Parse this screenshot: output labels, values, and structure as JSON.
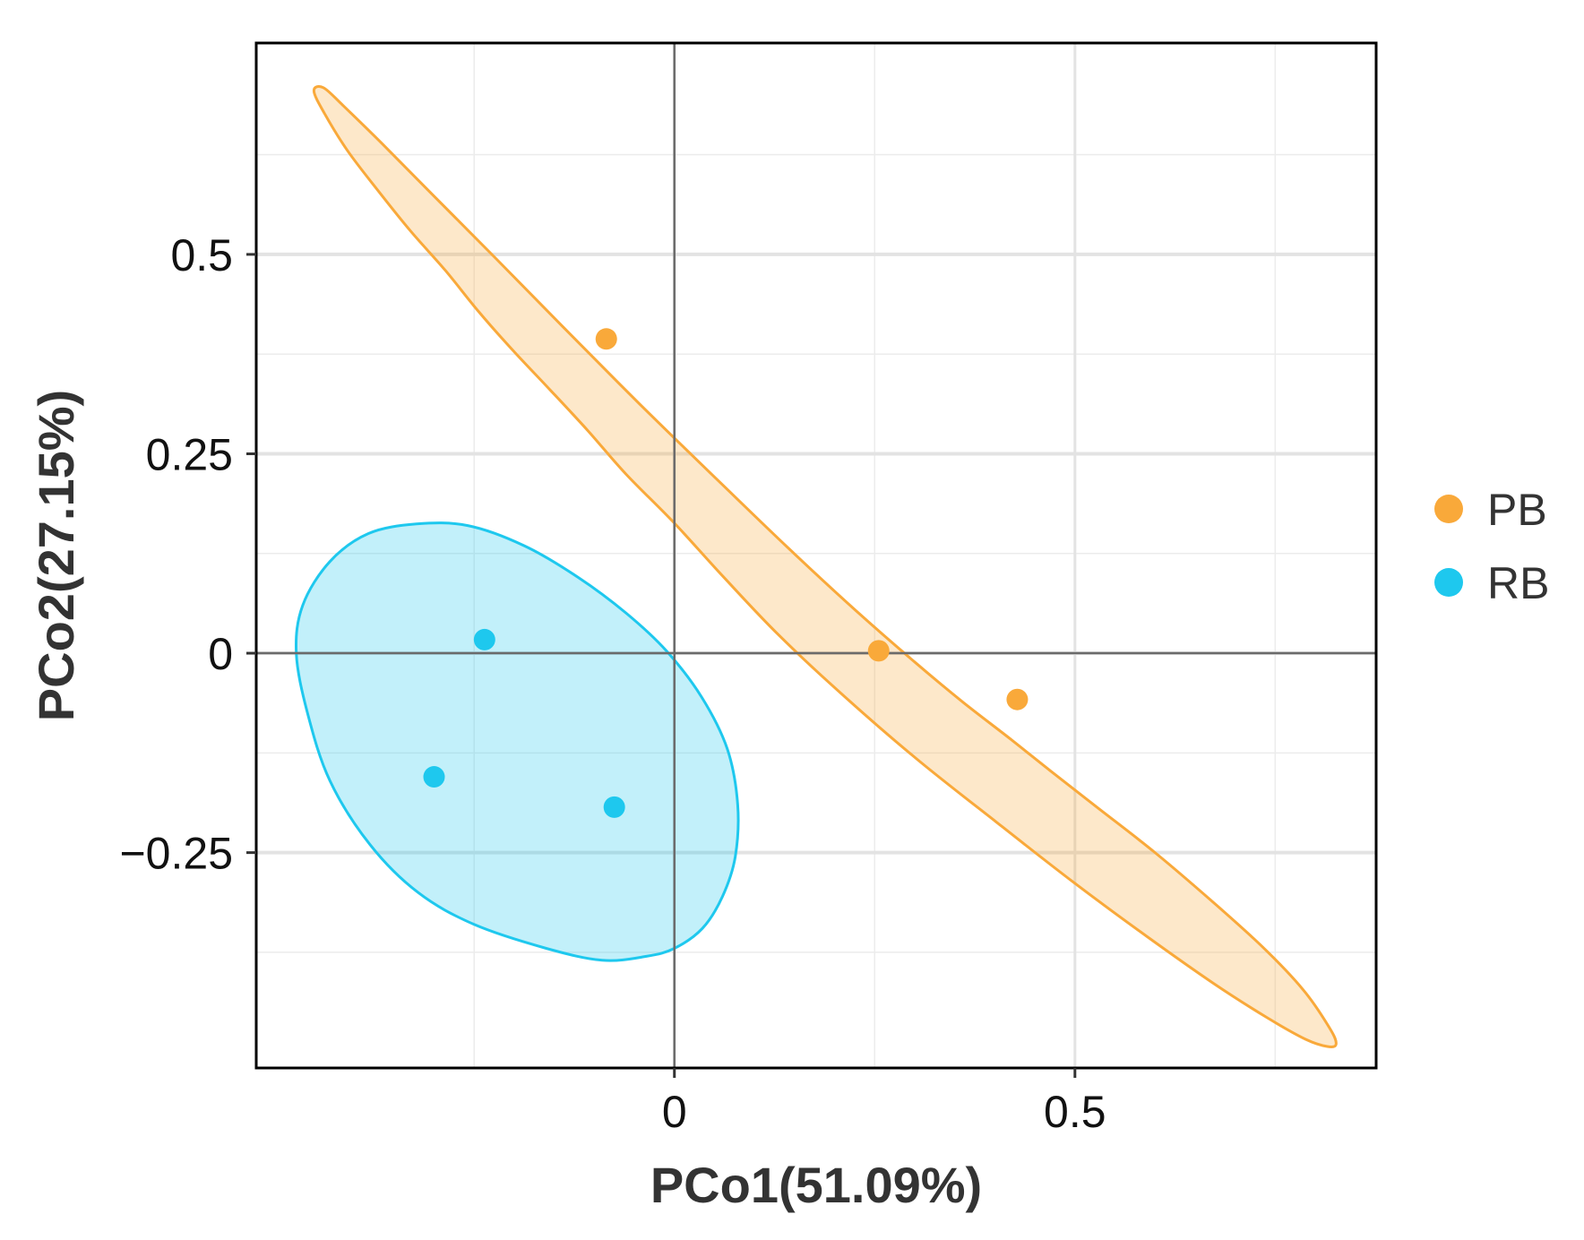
{
  "chart_data": {
    "type": "scatter",
    "title": "",
    "xlabel": "PCo1(51.09%)",
    "ylabel": "PCo2(27.15%)",
    "xlim": [
      -0.522,
      0.876
    ],
    "ylim": [
      -0.52,
      0.765
    ],
    "x_ticks": [
      {
        "value": 0,
        "label": "0"
      },
      {
        "value": 0.5,
        "label": "0.5"
      }
    ],
    "y_ticks": [
      {
        "value": 0.5,
        "label": "0.5"
      },
      {
        "value": 0.25,
        "label": "0.25"
      },
      {
        "value": 0,
        "label": "0"
      },
      {
        "value": -0.25,
        "label": "−0.25"
      }
    ],
    "x_minor_grid": [
      -0.25,
      0.25,
      0.75
    ],
    "y_minor_grid": [
      0.625,
      0.375,
      0.125,
      -0.125,
      -0.375
    ],
    "reference_lines": {
      "x": 0,
      "y": 0
    },
    "grid": true,
    "legend_position": "right",
    "series": [
      {
        "name": "PB",
        "color": "#F9A93A",
        "points": [
          [
            -0.085,
            0.394
          ],
          [
            0.255,
            0.003
          ],
          [
            0.428,
            -0.058
          ]
        ],
        "ellipse_outline": [
          [
            -0.438,
            0.709
          ],
          [
            -0.413,
            0.686
          ],
          [
            -0.366,
            0.64
          ],
          [
            -0.302,
            0.575
          ],
          [
            -0.224,
            0.496
          ],
          [
            -0.136,
            0.406
          ],
          [
            -0.043,
            0.312
          ],
          [
            0.052,
            0.219
          ],
          [
            0.143,
            0.131
          ],
          [
            0.227,
            0.053
          ],
          [
            0.301,
            -0.012
          ],
          [
            0.361,
            -0.062
          ],
          [
            0.42,
            -0.108
          ],
          [
            0.47,
            -0.148
          ],
          [
            0.53,
            -0.195
          ],
          [
            0.6,
            -0.25
          ],
          [
            0.67,
            -0.31
          ],
          [
            0.734,
            -0.368
          ],
          [
            0.785,
            -0.422
          ],
          [
            0.818,
            -0.47
          ],
          [
            0.826,
            -0.49
          ],
          [
            0.815,
            -0.493
          ],
          [
            0.788,
            -0.484
          ],
          [
            0.74,
            -0.457
          ],
          [
            0.673,
            -0.414
          ],
          [
            0.591,
            -0.356
          ],
          [
            0.498,
            -0.287
          ],
          [
            0.401,
            -0.211
          ],
          [
            0.303,
            -0.133
          ],
          [
            0.212,
            -0.054
          ],
          [
            0.13,
            0.023
          ],
          [
            0.06,
            0.097
          ],
          [
            0.0,
            0.163
          ],
          [
            -0.06,
            0.224
          ],
          [
            -0.108,
            0.279
          ],
          [
            -0.155,
            0.33
          ],
          [
            -0.201,
            0.379
          ],
          [
            -0.245,
            0.429
          ],
          [
            -0.286,
            0.48
          ],
          [
            -0.33,
            0.53
          ],
          [
            -0.37,
            0.58
          ],
          [
            -0.408,
            0.63
          ],
          [
            -0.437,
            0.677
          ],
          [
            -0.45,
            0.705
          ]
        ]
      },
      {
        "name": "RB",
        "color": "#1EC8EE",
        "points": [
          [
            -0.237,
            0.017
          ],
          [
            -0.3,
            -0.155
          ],
          [
            -0.075,
            -0.193
          ]
        ],
        "ellipse_outline": [
          [
            -0.322,
            0.162
          ],
          [
            -0.258,
            0.16
          ],
          [
            -0.188,
            0.135
          ],
          [
            -0.12,
            0.095
          ],
          [
            -0.06,
            0.05
          ],
          [
            -0.01,
            0.003
          ],
          [
            0.034,
            -0.055
          ],
          [
            0.066,
            -0.12
          ],
          [
            0.079,
            -0.19
          ],
          [
            0.076,
            -0.255
          ],
          [
            0.06,
            -0.305
          ],
          [
            0.035,
            -0.345
          ],
          [
            0.0,
            -0.37
          ],
          [
            -0.035,
            -0.38
          ],
          [
            -0.09,
            -0.385
          ],
          [
            -0.16,
            -0.37
          ],
          [
            -0.25,
            -0.34
          ],
          [
            -0.32,
            -0.3
          ],
          [
            -0.38,
            -0.24
          ],
          [
            -0.43,
            -0.16
          ],
          [
            -0.458,
            -0.075
          ],
          [
            -0.472,
            0.0
          ],
          [
            -0.464,
            0.06
          ],
          [
            -0.43,
            0.115
          ],
          [
            -0.382,
            0.15
          ]
        ]
      }
    ]
  }
}
